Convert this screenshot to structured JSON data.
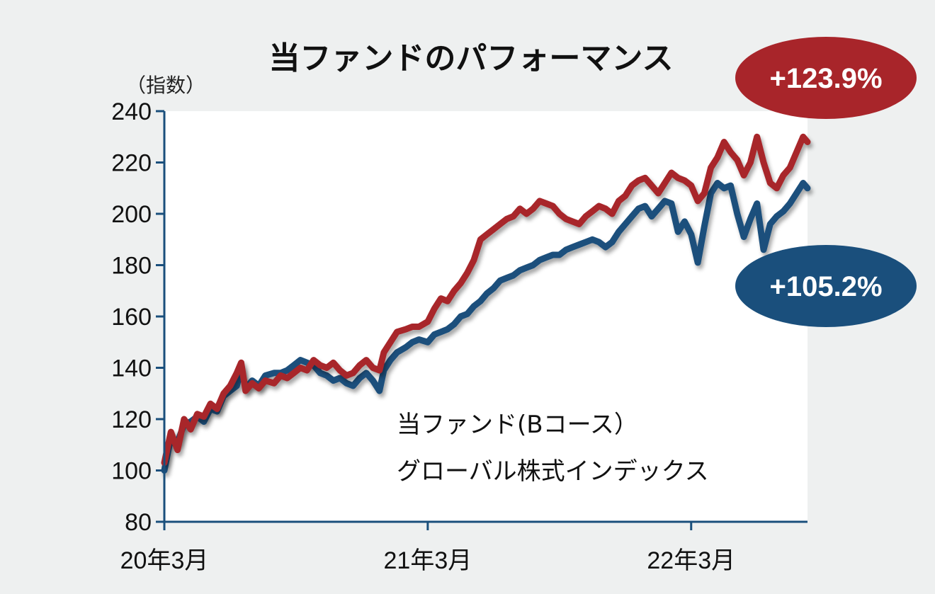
{
  "chart_data": {
    "type": "line",
    "title": "当ファンドのパフォーマンス",
    "ylabel": "（指数）",
    "xlabel": "",
    "ylim": [
      80,
      240
    ],
    "yticks": [
      80,
      100,
      120,
      140,
      160,
      180,
      200,
      220,
      240
    ],
    "xticks": [
      {
        "label": "20年3月",
        "t": 0
      },
      {
        "label": "21年3月",
        "t": 12
      },
      {
        "label": "22年3月",
        "t": 24
      }
    ],
    "xlim": [
      0,
      29.3
    ],
    "legend_position": "bottom-center",
    "series": [
      {
        "name": "当ファンド(Bコース）",
        "color": "#a8252a",
        "badge": "+123.9%",
        "points": [
          [
            0,
            103
          ],
          [
            0.3,
            115
          ],
          [
            0.6,
            108
          ],
          [
            0.9,
            120
          ],
          [
            1.2,
            116
          ],
          [
            1.5,
            122
          ],
          [
            1.8,
            121
          ],
          [
            2.1,
            126
          ],
          [
            2.4,
            124
          ],
          [
            2.7,
            130
          ],
          [
            3.0,
            133
          ],
          [
            3.3,
            138
          ],
          [
            3.5,
            142
          ],
          [
            3.7,
            131
          ],
          [
            4.0,
            134
          ],
          [
            4.3,
            132
          ],
          [
            4.6,
            135
          ],
          [
            5.0,
            134
          ],
          [
            5.3,
            137
          ],
          [
            5.6,
            136
          ],
          [
            5.9,
            138
          ],
          [
            6.2,
            140
          ],
          [
            6.5,
            139
          ],
          [
            6.8,
            143
          ],
          [
            7.1,
            141
          ],
          [
            7.4,
            140
          ],
          [
            7.7,
            142
          ],
          [
            8.0,
            139
          ],
          [
            8.3,
            137
          ],
          [
            8.6,
            138
          ],
          [
            8.9,
            141
          ],
          [
            9.2,
            143
          ],
          [
            9.5,
            140
          ],
          [
            9.8,
            139
          ],
          [
            10.0,
            146
          ],
          [
            10.3,
            150
          ],
          [
            10.6,
            154
          ],
          [
            11.0,
            155
          ],
          [
            11.3,
            156
          ],
          [
            11.6,
            156
          ],
          [
            12.0,
            158
          ],
          [
            12.3,
            163
          ],
          [
            12.6,
            167
          ],
          [
            12.9,
            166
          ],
          [
            13.2,
            170
          ],
          [
            13.5,
            173
          ],
          [
            13.8,
            177
          ],
          [
            14.1,
            182
          ],
          [
            14.4,
            190
          ],
          [
            14.7,
            192
          ],
          [
            15.0,
            194
          ],
          [
            15.3,
            196
          ],
          [
            15.6,
            198
          ],
          [
            15.9,
            199
          ],
          [
            16.2,
            202
          ],
          [
            16.5,
            200
          ],
          [
            16.8,
            202
          ],
          [
            17.1,
            205
          ],
          [
            17.4,
            204
          ],
          [
            17.7,
            203
          ],
          [
            18.0,
            200
          ],
          [
            18.3,
            198
          ],
          [
            18.6,
            197
          ],
          [
            18.9,
            196
          ],
          [
            19.2,
            199
          ],
          [
            19.5,
            201
          ],
          [
            19.8,
            203
          ],
          [
            20.1,
            202
          ],
          [
            20.4,
            200
          ],
          [
            20.7,
            205
          ],
          [
            21.0,
            207
          ],
          [
            21.3,
            211
          ],
          [
            21.6,
            213
          ],
          [
            21.9,
            214
          ],
          [
            22.2,
            211
          ],
          [
            22.5,
            208
          ],
          [
            22.8,
            212
          ],
          [
            23.1,
            216
          ],
          [
            23.4,
            214
          ],
          [
            23.7,
            213
          ],
          [
            24.0,
            211
          ],
          [
            24.3,
            205
          ],
          [
            24.6,
            208
          ],
          [
            24.9,
            218
          ],
          [
            25.2,
            222
          ],
          [
            25.5,
            228
          ],
          [
            25.8,
            224
          ],
          [
            26.1,
            221
          ],
          [
            26.4,
            215
          ],
          [
            26.7,
            220
          ],
          [
            27.0,
            230
          ],
          [
            27.3,
            220
          ],
          [
            27.6,
            212
          ],
          [
            27.9,
            210
          ],
          [
            28.2,
            215
          ],
          [
            28.5,
            218
          ],
          [
            28.8,
            224
          ],
          [
            29.1,
            230
          ],
          [
            29.3,
            228
          ]
        ]
      },
      {
        "name": "グローバル株式インデックス",
        "color": "#1a4f7c",
        "badge": "+105.2%",
        "points": [
          [
            0,
            100
          ],
          [
            0.3,
            113
          ],
          [
            0.6,
            111
          ],
          [
            0.9,
            118
          ],
          [
            1.2,
            119
          ],
          [
            1.5,
            121
          ],
          [
            1.8,
            119
          ],
          [
            2.1,
            124
          ],
          [
            2.4,
            123
          ],
          [
            2.7,
            129
          ],
          [
            3.0,
            131
          ],
          [
            3.3,
            133
          ],
          [
            3.5,
            140
          ],
          [
            3.7,
            132
          ],
          [
            4.0,
            135
          ],
          [
            4.3,
            133
          ],
          [
            4.6,
            137
          ],
          [
            5.0,
            138
          ],
          [
            5.3,
            138
          ],
          [
            5.6,
            139
          ],
          [
            5.9,
            141
          ],
          [
            6.2,
            143
          ],
          [
            6.5,
            142
          ],
          [
            6.8,
            141
          ],
          [
            7.1,
            138
          ],
          [
            7.4,
            137
          ],
          [
            7.7,
            135
          ],
          [
            8.0,
            136
          ],
          [
            8.3,
            134
          ],
          [
            8.6,
            133
          ],
          [
            8.9,
            136
          ],
          [
            9.2,
            138
          ],
          [
            9.5,
            135
          ],
          [
            9.8,
            131
          ],
          [
            10.0,
            139
          ],
          [
            10.3,
            143
          ],
          [
            10.6,
            146
          ],
          [
            11.0,
            148
          ],
          [
            11.3,
            150
          ],
          [
            11.6,
            151
          ],
          [
            12.0,
            150
          ],
          [
            12.3,
            153
          ],
          [
            12.6,
            154
          ],
          [
            12.9,
            155
          ],
          [
            13.2,
            157
          ],
          [
            13.5,
            160
          ],
          [
            13.8,
            161
          ],
          [
            14.1,
            164
          ],
          [
            14.4,
            166
          ],
          [
            14.7,
            169
          ],
          [
            15.0,
            171
          ],
          [
            15.3,
            174
          ],
          [
            15.6,
            175
          ],
          [
            15.9,
            176
          ],
          [
            16.2,
            178
          ],
          [
            16.5,
            179
          ],
          [
            16.8,
            180
          ],
          [
            17.1,
            182
          ],
          [
            17.4,
            183
          ],
          [
            17.7,
            184
          ],
          [
            18.0,
            184
          ],
          [
            18.3,
            186
          ],
          [
            18.6,
            187
          ],
          [
            18.9,
            188
          ],
          [
            19.2,
            189
          ],
          [
            19.5,
            190
          ],
          [
            19.8,
            189
          ],
          [
            20.1,
            187
          ],
          [
            20.4,
            189
          ],
          [
            20.7,
            193
          ],
          [
            21.0,
            196
          ],
          [
            21.3,
            199
          ],
          [
            21.6,
            202
          ],
          [
            21.9,
            203
          ],
          [
            22.2,
            199
          ],
          [
            22.5,
            202
          ],
          [
            22.8,
            205
          ],
          [
            23.1,
            204
          ],
          [
            23.4,
            193
          ],
          [
            23.7,
            197
          ],
          [
            24.0,
            192
          ],
          [
            24.3,
            181
          ],
          [
            24.6,
            195
          ],
          [
            24.9,
            208
          ],
          [
            25.2,
            212
          ],
          [
            25.5,
            210
          ],
          [
            25.8,
            211
          ],
          [
            26.1,
            200
          ],
          [
            26.4,
            191
          ],
          [
            26.7,
            198
          ],
          [
            27.0,
            204
          ],
          [
            27.3,
            186
          ],
          [
            27.6,
            196
          ],
          [
            27.9,
            199
          ],
          [
            28.2,
            201
          ],
          [
            28.5,
            204
          ],
          [
            28.8,
            208
          ],
          [
            29.1,
            212
          ],
          [
            29.3,
            210
          ]
        ]
      }
    ]
  }
}
